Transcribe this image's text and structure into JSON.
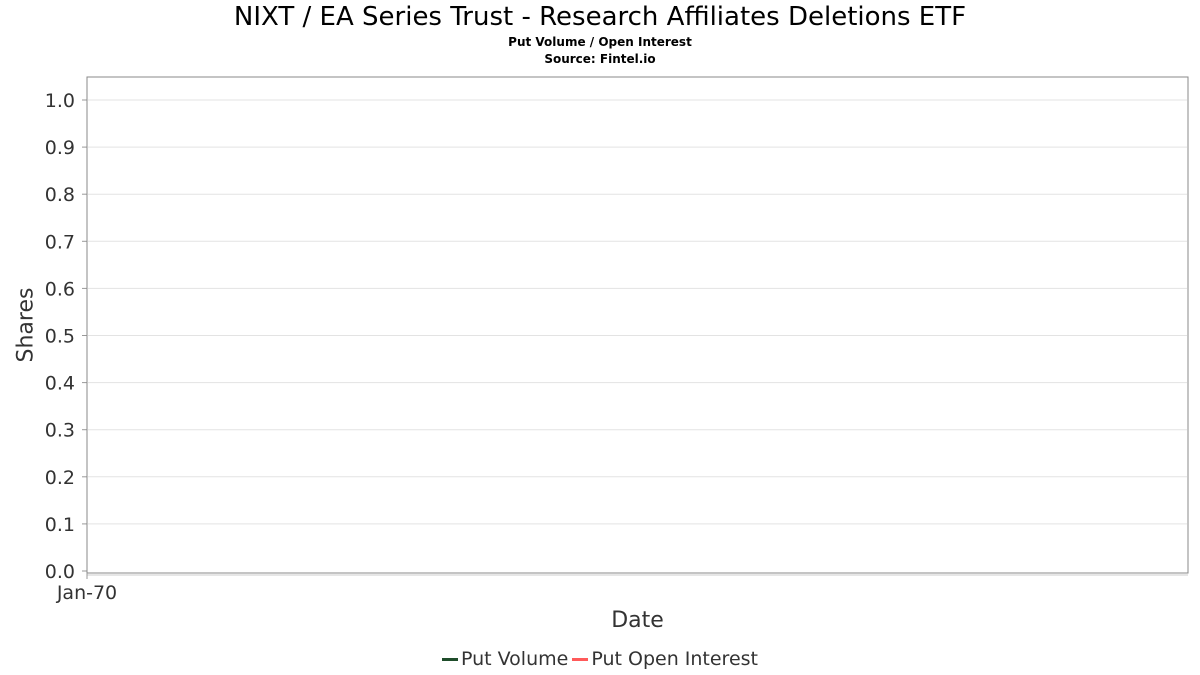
{
  "chart_data": {
    "type": "line",
    "title": "NIXT / EA Series Trust - Research Affiliates Deletions ETF",
    "subtitle_lines": [
      "Put Volume / Open Interest",
      "Source: Fintel.io"
    ],
    "xlabel": "Date",
    "ylabel": "Shares",
    "x_ticks": [
      "Jan-70"
    ],
    "y_ticks": [
      "0.0",
      "0.1",
      "0.2",
      "0.3",
      "0.4",
      "0.5",
      "0.6",
      "0.7",
      "0.8",
      "0.9",
      "1.0"
    ],
    "ylim": [
      0,
      1.05
    ],
    "grid": true,
    "legend_position": "bottom",
    "series": [
      {
        "name": "Put Volume",
        "color": "#1f4d2b",
        "values": []
      },
      {
        "name": "Put Open Interest",
        "color": "#ff5a5a",
        "values": []
      }
    ]
  }
}
